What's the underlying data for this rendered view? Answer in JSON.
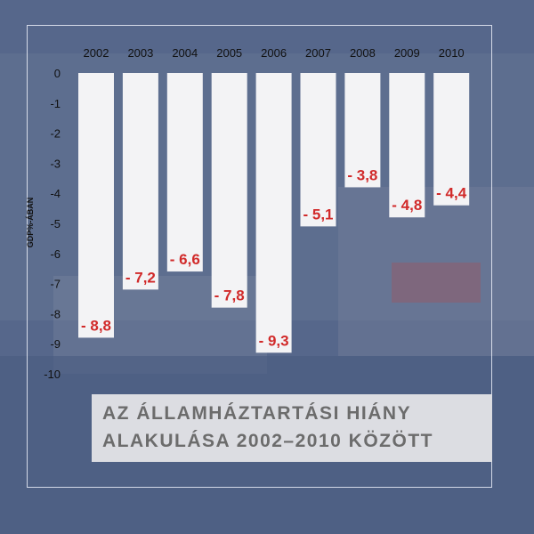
{
  "chart_data": {
    "type": "bar",
    "categories": [
      "2002",
      "2003",
      "2004",
      "2005",
      "2006",
      "2007",
      "2008",
      "2009",
      "2010"
    ],
    "values": [
      -8.8,
      -7.2,
      -6.6,
      -7.8,
      -9.3,
      -5.1,
      -3.8,
      -4.8,
      -4.4
    ],
    "value_labels": [
      "- 8,8",
      "- 7,2",
      "- 6,6",
      "- 7,8",
      "- 9,3",
      "- 5,1",
      "- 3,8",
      "- 4,8",
      "- 4,4"
    ],
    "ylabel": "GDP%-ÁBAN",
    "ylim": [
      -10,
      0
    ],
    "yticks": [
      0,
      -1,
      -2,
      -3,
      -4,
      -5,
      -6,
      -7,
      -8,
      -9,
      -10
    ],
    "ytick_labels": [
      "0",
      "-1",
      "-2",
      "-3",
      "-4",
      "-5",
      "-6",
      "-7",
      "-8",
      "-9",
      "-10"
    ],
    "x_axis_position": "top",
    "grid": false,
    "legend": "none",
    "colors": {
      "bar": "#f3f3f5",
      "value_text": "#d12a2a",
      "axis_text": "#111111",
      "background": "#56678b",
      "title_box": "#dcdde2",
      "title_text": "#6c6c6c"
    }
  },
  "title": {
    "line1": "AZ ÁLLAMHÁZTARTÁSI HIÁNY",
    "line2": "ALAKULÁSA 2002–2010 KÖZÖTT"
  }
}
